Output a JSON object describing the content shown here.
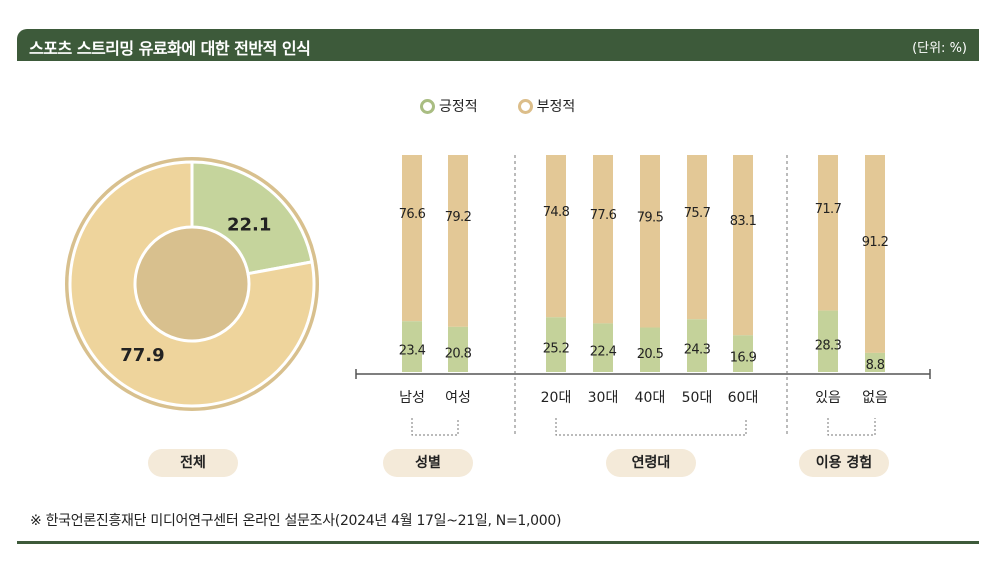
{
  "header": {
    "title": "스포츠 스트리밍 유료화에 대한 전반적 인식",
    "unit": "(단위: %)"
  },
  "legend": [
    {
      "label": "긍정적",
      "color": "#a9bd82"
    },
    {
      "label": "부정적",
      "color": "#dcbe8a"
    }
  ],
  "colors": {
    "positive": "#c4d29a",
    "negative": "#e3c896",
    "donut_positive": "#c5d49c",
    "donut_negative": "#eed49c",
    "donut_ring": "#d8c08e"
  },
  "chart_data": [
    {
      "type": "pie",
      "group": "전체",
      "categories": [
        "긍정적",
        "부정적"
      ],
      "values": [
        22.1,
        77.9
      ]
    },
    {
      "type": "bar",
      "stacked": true,
      "ylim": [
        0,
        100
      ],
      "groups": [
        {
          "label": "성별",
          "categories": [
            "남성",
            "여성"
          ]
        },
        {
          "label": "연령대",
          "categories": [
            "20대",
            "30대",
            "40대",
            "50대",
            "60대"
          ]
        },
        {
          "label": "이용 경험",
          "categories": [
            "있음",
            "없음"
          ]
        }
      ],
      "categories": [
        "남성",
        "여성",
        "20대",
        "30대",
        "40대",
        "50대",
        "60대",
        "있음",
        "없음"
      ],
      "series": [
        {
          "name": "긍정적",
          "values": [
            23.4,
            20.8,
            25.2,
            22.4,
            20.5,
            24.3,
            16.9,
            28.3,
            8.8
          ]
        },
        {
          "name": "부정적",
          "values": [
            76.6,
            79.2,
            74.8,
            77.6,
            79.5,
            75.7,
            83.1,
            71.7,
            91.2
          ]
        }
      ]
    }
  ],
  "footnote": "※ 한국언론진흥재단 미디어연구센터 온라인 설문조사(2024년 4월 17일~21일, N=1,000)"
}
